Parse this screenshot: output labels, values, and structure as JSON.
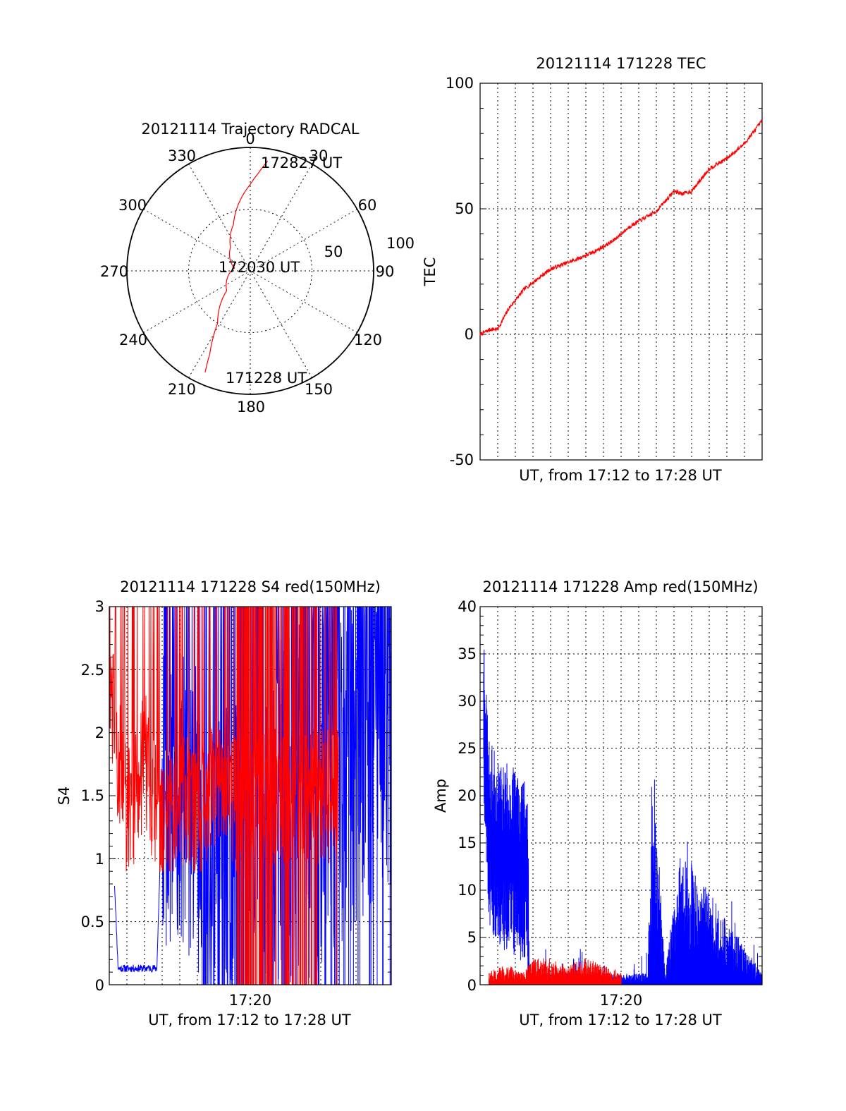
{
  "colors": {
    "red": "#ff0000",
    "blue": "#0000ff",
    "axis": "#000000",
    "background": "#ffffff"
  },
  "chart_data": [
    {
      "type": "polar",
      "title": "20121114 Trajectory RADCAL",
      "angle_labels": [
        "0",
        "30",
        "60",
        "90",
        "120",
        "150",
        "180",
        "210",
        "240",
        "270",
        "300",
        "330"
      ],
      "radius_labels": [
        "50",
        "100"
      ],
      "rlim": [
        0,
        100
      ],
      "grid": true,
      "series": [
        {
          "color": "red",
          "points": [
            [
              9,
              90
            ],
            [
              5,
              80
            ],
            [
              0,
              70
            ],
            [
              -10,
              55
            ],
            [
              -20,
              40
            ],
            [
              -40,
              25
            ],
            [
              -80,
              13
            ],
            [
              -130,
              25
            ],
            [
              -148,
              50
            ],
            [
              -154,
              75
            ],
            [
              -156,
              90
            ]
          ]
        }
      ],
      "annotations": [
        "172827 UT",
        "172030 UT",
        "171228 UT"
      ]
    },
    {
      "type": "line",
      "title": "20121114 171228 TEC",
      "xlabel": "UT, from 17:12 to 17:28 UT",
      "ylabel": "TEC",
      "xlim": [
        0,
        16
      ],
      "ylim": [
        -50,
        100
      ],
      "yticks": [
        "100",
        "50",
        "0",
        "-50"
      ],
      "grid": true,
      "series": [
        {
          "color": "red",
          "x": [
            0,
            0.6,
            1.0,
            1.6,
            2.5,
            4.0,
            5.5,
            6.5,
            7.5,
            8.5,
            9.5,
            10.0,
            11.0,
            11.5,
            12.0,
            13.0,
            14.0,
            15.0,
            16.0
          ],
          "y": [
            0,
            2,
            2,
            10,
            18,
            26,
            30,
            33,
            37,
            43,
            47,
            49,
            57,
            56,
            57,
            66,
            70,
            76,
            85
          ]
        }
      ]
    },
    {
      "type": "line",
      "title": "20121114 171228 S4 red(150MHz)",
      "xlabel": "UT, from 17:12 to 17:28 UT",
      "ylabel": "S4",
      "xlim": [
        0,
        16
      ],
      "ylim": [
        0,
        3
      ],
      "yticks": [
        "3",
        "2.5",
        "2",
        "1.5",
        "1",
        "0.5",
        "0"
      ],
      "xtick_labels": [
        {
          "x": 8,
          "label": "17:20"
        }
      ],
      "grid": true,
      "series": [
        {
          "color": "blue",
          "x": [
            0.3,
            0.5,
            2.7,
            3.0,
            5.0,
            5.3,
            16.0
          ],
          "y": [
            0.8,
            0.13,
            0.13,
            1.5,
            1.4,
            0.5,
            2.3
          ]
        },
        {
          "color": "red",
          "x": [
            0.0,
            1.0,
            2.0,
            3.0,
            4.0,
            5.0,
            6.0,
            7.0,
            8.0,
            9.0,
            10.0,
            11.0,
            12.0,
            13.0
          ],
          "y": [
            2.4,
            1.3,
            1.8,
            1.2,
            1.5,
            1.3,
            1.6,
            1.4,
            1.5,
            1.5,
            1.5,
            1.5,
            1.5,
            1.5
          ]
        }
      ]
    },
    {
      "type": "line",
      "title": "20121114 171228 Amp red(150MHz)",
      "xlabel": "UT, from 17:12 to 17:28 UT",
      "ylabel": "Amp",
      "xlim": [
        0,
        16
      ],
      "ylim": [
        0,
        40
      ],
      "yticks": [
        "40",
        "35",
        "30",
        "25",
        "20",
        "15",
        "10",
        "5",
        "0"
      ],
      "xtick_labels": [
        {
          "x": 8,
          "label": "17:20"
        }
      ],
      "grid": true,
      "series": [
        {
          "color": "blue",
          "x": [
            0.2,
            0.5,
            1.0,
            2.0,
            2.7,
            2.8,
            5.0,
            9.5,
            9.8,
            10.5,
            11.4,
            16.0
          ],
          "y": [
            31,
            18,
            16,
            15,
            14,
            1,
            1,
            1,
            21,
            1,
            12,
            1
          ]
        },
        {
          "color": "red",
          "x": [
            0.5,
            1.5,
            2.5,
            3.0,
            4.0,
            5.0,
            6.0,
            7.0,
            8.0
          ],
          "y": [
            1,
            1.5,
            1,
            2,
            2,
            1.5,
            2,
            1.5,
            1
          ]
        }
      ]
    }
  ]
}
